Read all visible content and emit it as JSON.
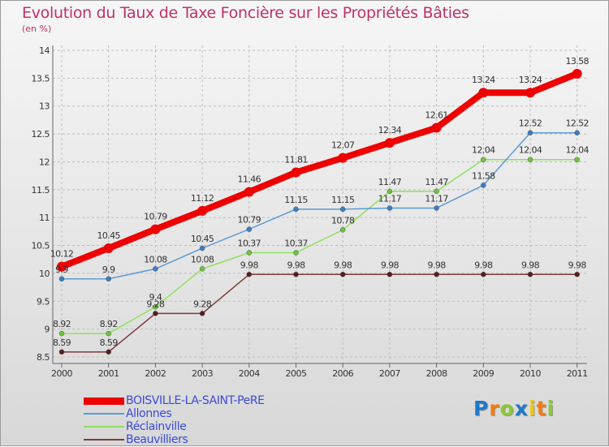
{
  "title": "Evolution du Taux de Taxe Foncière sur les Propriétés Bâties",
  "subtitle": "(en %)",
  "brand": {
    "text": "Proxiti",
    "letters": [
      "P",
      "r",
      "o",
      "x",
      "i",
      "t",
      "i"
    ],
    "colors": [
      "#1e78c8",
      "#f07d14",
      "#8cc832",
      "#1e78c8",
      "#e8c814",
      "#f07d14",
      "#8cc832"
    ]
  },
  "chart_data": {
    "type": "line",
    "title": "Evolution du Taux de Taxe Foncière sur les Propriétés Bâties",
    "ylabel": "(en %)",
    "categories": [
      "2000",
      "2001",
      "2002",
      "2003",
      "2004",
      "2005",
      "2006",
      "2007",
      "2008",
      "2009",
      "2010",
      "2011"
    ],
    "ylim": [
      8.5,
      14
    ],
    "yticks": [
      "8.5",
      "9",
      "9.5",
      "10",
      "10.5",
      "11",
      "11.5",
      "12",
      "12.5",
      "13",
      "13.5",
      "14"
    ],
    "series": [
      {
        "name": "BOISVILLE-LA-SAINT-PeRE",
        "color": "#ee0000",
        "width": 8,
        "dot": 6,
        "values": [
          10.12,
          10.45,
          10.79,
          11.12,
          11.46,
          11.81,
          12.07,
          12.34,
          12.61,
          13.24,
          13.24,
          13.58
        ],
        "labels": [
          "10.12",
          "10.45",
          "10.79",
          "11.12",
          "11.46",
          "11.81",
          "12.07",
          "12.34",
          "12.61",
          "13.24",
          "13.24",
          "13.58"
        ]
      },
      {
        "name": "Allonnes",
        "color": "#5b9bd5",
        "width": 1.5,
        "dot": 3,
        "dotColor": "#3d7fc0",
        "values": [
          9.9,
          9.9,
          10.08,
          10.45,
          10.79,
          11.15,
          11.15,
          11.17,
          11.17,
          11.58,
          12.52,
          12.52
        ],
        "labels": [
          "9.9",
          "9.9",
          "10.08",
          "10.45",
          "10.79",
          "11.15",
          "11.15",
          "11.17",
          "11.17",
          "11.58",
          "12.52",
          "12.52"
        ]
      },
      {
        "name": "Réclainville",
        "color": "#90e060",
        "width": 1.5,
        "dot": 3,
        "dotColor": "#6cc63c",
        "values": [
          8.92,
          8.92,
          9.4,
          10.08,
          10.37,
          10.37,
          10.78,
          11.47,
          11.47,
          12.04,
          12.04,
          12.04
        ],
        "labels": [
          "8.92",
          "8.92",
          "9.4",
          "10.08",
          "10.37",
          "10.37",
          "10.78",
          "11.47",
          "11.47",
          "12.04",
          "12.04",
          "12.04"
        ]
      },
      {
        "name": "Beauvilliers",
        "color": "#7b3b3b",
        "width": 1.5,
        "dot": 3,
        "dotColor": "#5a1e1e",
        "values": [
          8.59,
          8.59,
          9.28,
          9.28,
          9.98,
          9.98,
          9.98,
          9.98,
          9.98,
          9.98,
          9.98,
          9.98
        ],
        "labels": [
          "8.59",
          "8.59",
          "9.28",
          "9.28",
          "9.98",
          "9.98",
          "9.98",
          "9.98",
          "9.98",
          "9.98",
          "9.98",
          "9.98"
        ]
      }
    ]
  }
}
